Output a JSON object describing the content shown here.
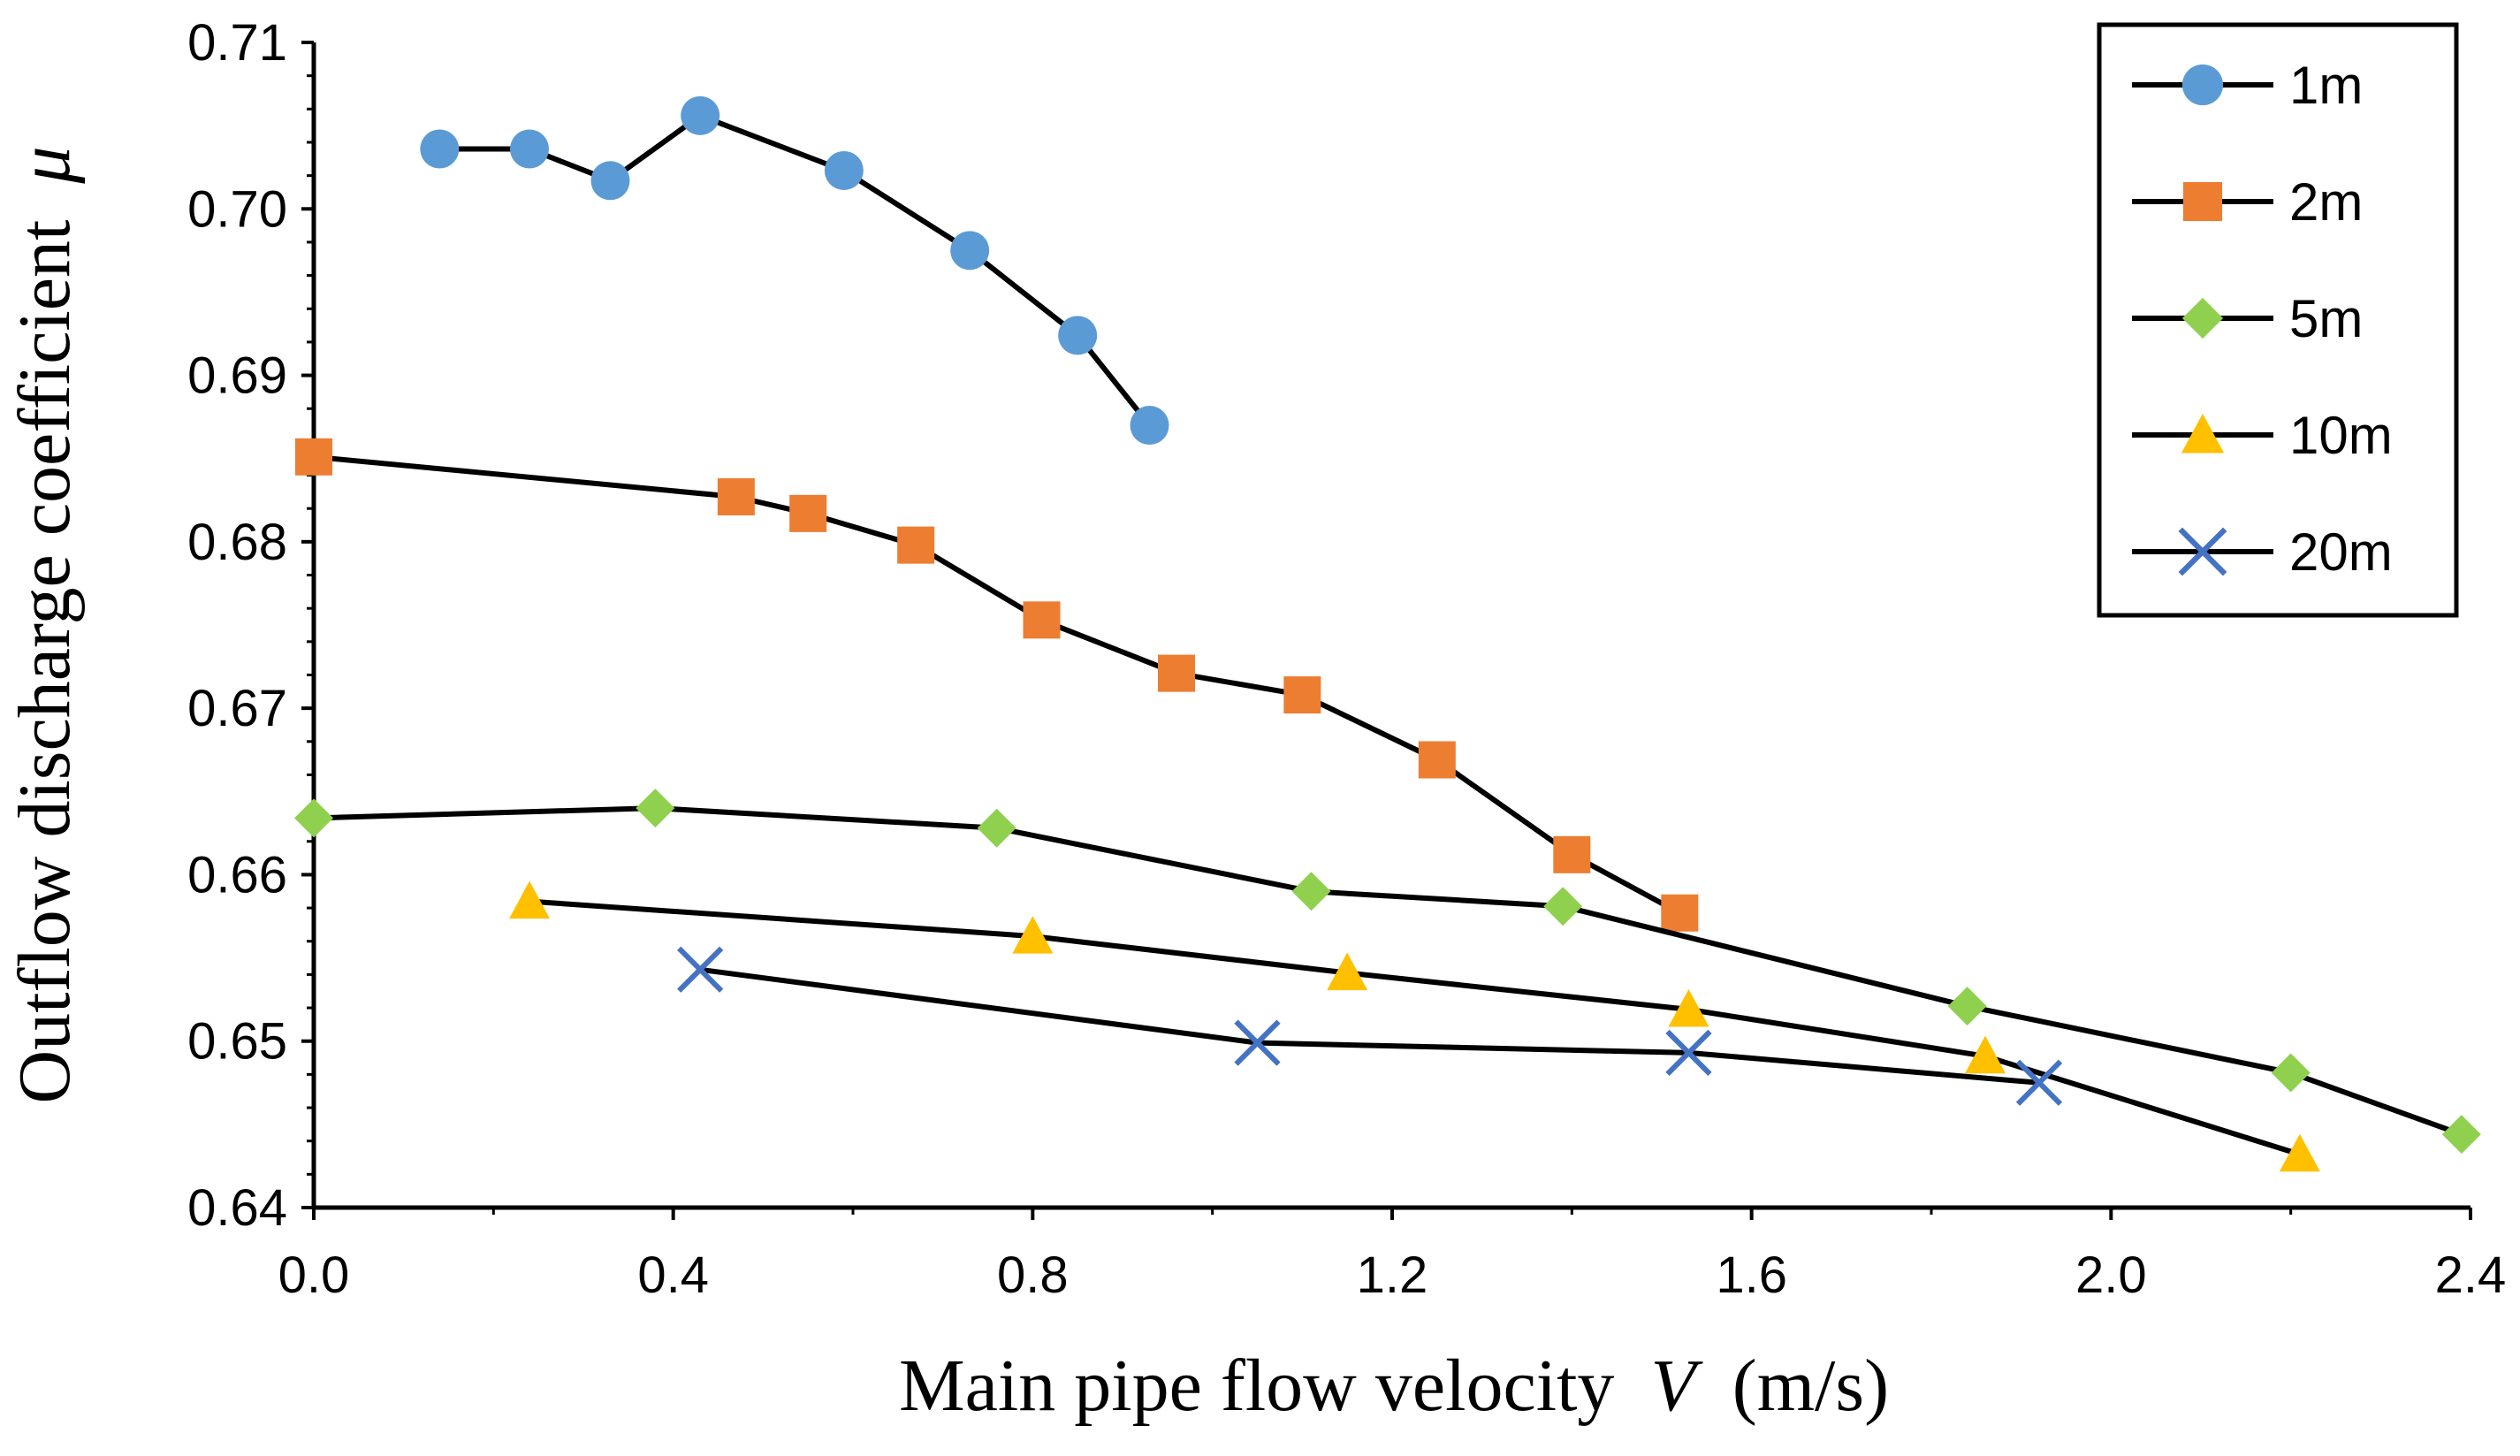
{
  "chart_data": {
    "type": "line",
    "title": "",
    "xlabel": "Main pipe flow velocity",
    "xlabel_var": "V",
    "xlabel_unit": "(m/s)",
    "ylabel": "Outflow discharge coefficient",
    "ylabel_var": "μ",
    "xlim": [
      0.0,
      2.4
    ],
    "ylim": [
      0.64,
      0.71
    ],
    "x_ticks": [
      "0.0",
      "0.4",
      "0.8",
      "1.2",
      "1.6",
      "2.0",
      "2.4"
    ],
    "y_ticks": [
      "0.64",
      "0.65",
      "0.66",
      "0.67",
      "0.68",
      "0.69",
      "0.70",
      "0.71"
    ],
    "grid": false,
    "legend_position": "top-right",
    "series": [
      {
        "name": "1m",
        "marker": "circle",
        "color": "#5B9BD5",
        "x": [
          0.14,
          0.24,
          0.33,
          0.43,
          0.59,
          0.73,
          0.85,
          0.93
        ],
        "y": [
          0.7036,
          0.7036,
          0.7017,
          0.7056,
          0.7023,
          0.6975,
          0.6924,
          0.687
        ]
      },
      {
        "name": "2m",
        "marker": "square",
        "color": "#ED7D31",
        "x": [
          0.0,
          0.47,
          0.55,
          0.67,
          0.81,
          0.96,
          1.1,
          1.25,
          1.4,
          1.52
        ],
        "y": [
          0.6851,
          0.6827,
          0.6817,
          0.6798,
          0.6753,
          0.6721,
          0.6708,
          0.6669,
          0.6612,
          0.6577
        ]
      },
      {
        "name": "5m",
        "marker": "diamond",
        "color": "#8FD14F",
        "x": [
          0.0,
          0.38,
          0.76,
          1.11,
          1.39,
          1.84,
          2.2,
          2.39
        ],
        "y": [
          0.6634,
          0.664,
          0.6628,
          0.659,
          0.6581,
          0.6521,
          0.6481,
          0.6444
        ]
      },
      {
        "name": "10m",
        "marker": "triangle",
        "color": "#FFC000",
        "x": [
          0.24,
          0.8,
          1.15,
          1.53,
          1.86,
          2.21
        ],
        "y": [
          0.6584,
          0.6563,
          0.6541,
          0.6519,
          0.6491,
          0.6432
        ]
      },
      {
        "name": "20m",
        "marker": "x",
        "color": "#4472C4",
        "x": [
          0.43,
          1.05,
          1.53,
          1.92
        ],
        "y": [
          0.6543,
          0.6499,
          0.6493,
          0.6475
        ]
      }
    ]
  }
}
